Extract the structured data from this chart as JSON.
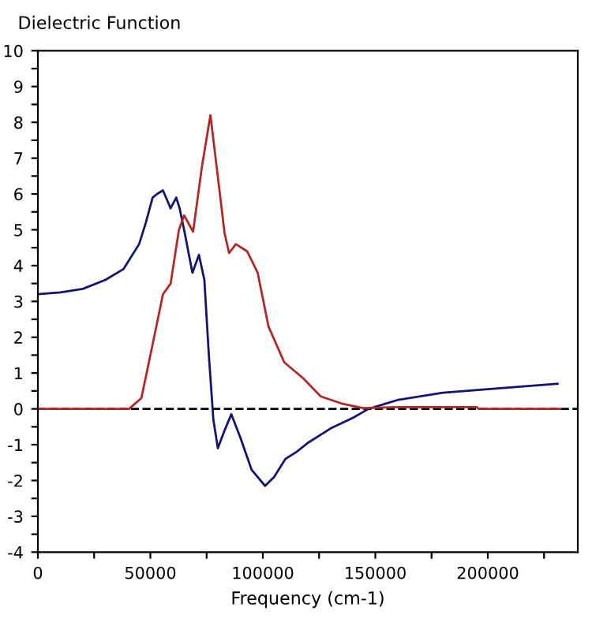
{
  "chart_data": {
    "type": "line",
    "title": "Dielectric Function",
    "xlabel": "Frequency (cm-1)",
    "xlim": [
      0,
      240000
    ],
    "xticks": [
      0,
      {
        "value": 25000,
        "label": null
      },
      50000,
      {
        "value": 75000,
        "label": null
      },
      100000,
      {
        "value": 125000,
        "label": null
      },
      150000,
      {
        "value": 175000,
        "label": null
      },
      200000,
      {
        "value": 225000,
        "label": null
      }
    ],
    "ylim": [
      -4,
      10
    ],
    "yticks": [
      -4,
      {
        "value": -3.5,
        "label": null
      },
      -3,
      {
        "value": -2.5,
        "label": null
      },
      -2,
      {
        "value": -1.5,
        "label": null
      },
      -1,
      {
        "value": -0.5,
        "label": null
      },
      0,
      {
        "value": 0.5,
        "label": null
      },
      1,
      {
        "value": 1.5,
        "label": null
      },
      2,
      {
        "value": 2.5,
        "label": null
      },
      3,
      {
        "value": 3.5,
        "label": null
      },
      4,
      {
        "value": 4.5,
        "label": null
      },
      5,
      {
        "value": 5.5,
        "label": null
      },
      6,
      {
        "value": 6.5,
        "label": null
      },
      7,
      {
        "value": 7.5,
        "label": null
      },
      8,
      {
        "value": 8.5,
        "label": null
      },
      9,
      {
        "value": 9.5,
        "label": null
      },
      10
    ],
    "grid": false,
    "marker": "none",
    "line_style": "solid",
    "ref_lines": [
      {
        "axis": "y",
        "value": 0,
        "label": null,
        "color": "#000000",
        "line_style": "dashed"
      }
    ],
    "series": [
      {
        "color": "#141470",
        "x": [
          0,
          10000,
          20000,
          30000,
          38000,
          45000,
          48000,
          51000,
          53000,
          55600,
          59000,
          61500,
          63000,
          65000,
          68700,
          71600,
          74000,
          76000,
          78000,
          80000,
          83000,
          86000,
          90000,
          95000,
          101000,
          105000,
          110000,
          115000,
          120000,
          130000,
          140000,
          147000,
          160000,
          180000,
          200000,
          231000
        ],
        "values": [
          3.2,
          3.25,
          3.35,
          3.6,
          3.9,
          4.6,
          5.2,
          5.9,
          6.0,
          6.1,
          5.6,
          5.9,
          5.6,
          5.0,
          3.8,
          4.3,
          3.6,
          1.5,
          -0.3,
          -1.1,
          -0.6,
          -0.15,
          -0.8,
          -1.7,
          -2.15,
          -1.9,
          -1.4,
          -1.2,
          -0.95,
          -0.55,
          -0.25,
          0,
          0.25,
          0.45,
          0.55,
          0.7
        ]
      },
      {
        "color": "#b02828",
        "x": [
          0,
          40500,
          46000,
          51000,
          55600,
          59000,
          62700,
          65000,
          69000,
          73000,
          76700,
          79000,
          83000,
          85000,
          88000,
          93000,
          97700,
          102500,
          109500,
          118000,
          125700,
          135000,
          144600,
          160000,
          195000,
          196000,
          232000
        ],
        "values": [
          0,
          0,
          0.3,
          1.8,
          3.2,
          3.5,
          5.0,
          5.4,
          4.95,
          6.8,
          8.2,
          7.0,
          4.9,
          4.35,
          4.6,
          4.4,
          3.8,
          2.3,
          1.3,
          0.85,
          0.35,
          0.15,
          0.02,
          0.05,
          0.05,
          0,
          0
        ]
      }
    ]
  }
}
